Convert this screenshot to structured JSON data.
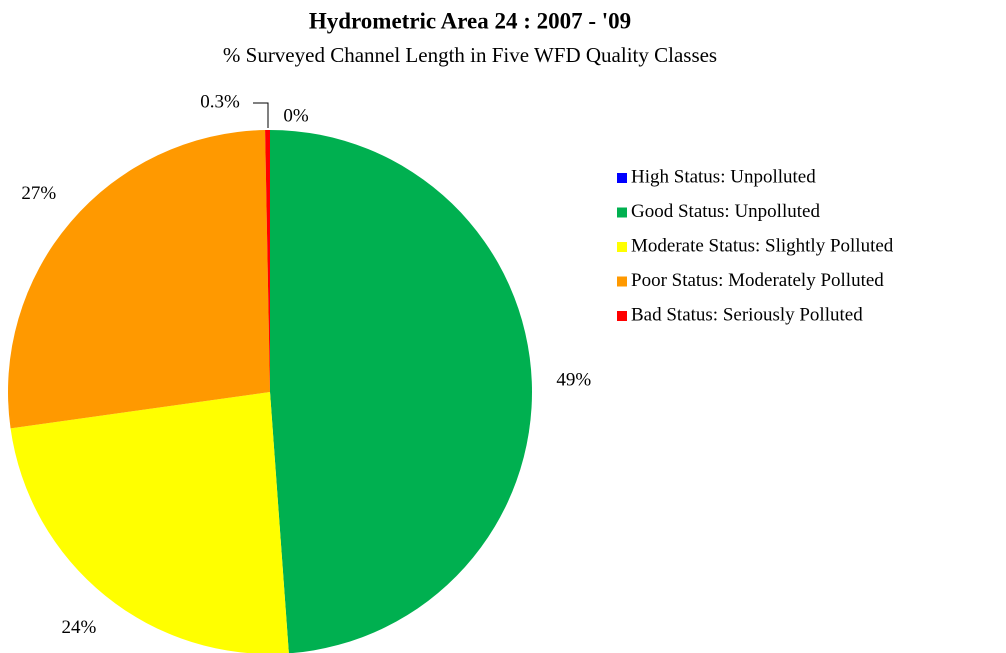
{
  "chart_data": {
    "type": "pie",
    "title": "Hydrometric Area 24  :  2007 - '09",
    "subtitle": "% Surveyed Channel Length in Five WFD Quality Classes",
    "categories": [
      "High Status: Unpolluted",
      "Good Status: Unpolluted",
      "Moderate Status: Slightly Polluted",
      "Poor Status: Moderately Polluted",
      "Bad Status: Seriously Polluted"
    ],
    "values": [
      0,
      49,
      24,
      27,
      0.3
    ],
    "value_labels": [
      "0%",
      "49%",
      "24%",
      "27%",
      "0.3%"
    ],
    "colors": [
      "#0000ff",
      "#00b050",
      "#ffff00",
      "#ff9900",
      "#ff0000"
    ],
    "legend": "right"
  }
}
